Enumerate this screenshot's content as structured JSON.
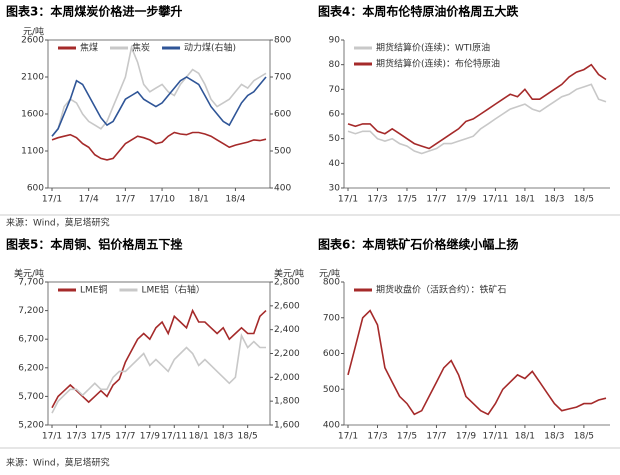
{
  "chart_data": [
    {
      "type": "line",
      "title": "图表3：本周煤炭价格进一步攀升",
      "ylabel": "元/吨",
      "frame": true,
      "categories": [
        "17/1",
        null,
        null,
        null,
        null,
        null,
        "17/4",
        null,
        null,
        null,
        null,
        null,
        "17/7",
        null,
        null,
        null,
        null,
        null,
        "17/10",
        null,
        null,
        null,
        null,
        null,
        "18/1",
        null,
        null,
        null,
        null,
        null,
        "18/4",
        null,
        null,
        null,
        null,
        null
      ],
      "ylim": [
        600,
        2600
      ],
      "yticks": [
        600,
        1100,
        1600,
        2100,
        2600
      ],
      "y2lim": [
        400,
        800
      ],
      "y2ticks": [
        400,
        500,
        600,
        700,
        800
      ],
      "series": [
        {
          "name": "焦煤",
          "color": "#a52a2a",
          "values": [
            1250,
            1280,
            1300,
            1320,
            1280,
            1200,
            1150,
            1050,
            1000,
            980,
            1000,
            1100,
            1200,
            1250,
            1300,
            1280,
            1250,
            1200,
            1220,
            1300,
            1350,
            1330,
            1320,
            1350,
            1350,
            1330,
            1300,
            1250,
            1200,
            1150,
            1180,
            1200,
            1220,
            1250,
            1240,
            1260
          ]
        },
        {
          "name": "焦炭",
          "color": "#c8c8c8",
          "values": [
            1300,
            1400,
            1700,
            1800,
            1750,
            1600,
            1500,
            1450,
            1400,
            1500,
            1700,
            1900,
            2100,
            2500,
            2300,
            2000,
            1900,
            1950,
            2000,
            1900,
            1850,
            2000,
            2100,
            2200,
            2150,
            2000,
            1800,
            1700,
            1750,
            1800,
            1900,
            2000,
            1950,
            2050,
            2100,
            2150
          ]
        },
        {
          "name": "动力煤(右轴)",
          "color": "#2f5597",
          "axis": "y2",
          "values": [
            540,
            560,
            600,
            640,
            690,
            680,
            650,
            620,
            590,
            570,
            580,
            610,
            640,
            650,
            660,
            640,
            630,
            620,
            630,
            650,
            670,
            690,
            700,
            690,
            680,
            650,
            620,
            600,
            580,
            570,
            600,
            630,
            650,
            660,
            680,
            700
          ]
        }
      ]
    },
    {
      "type": "line",
      "title": "图表4：本周布伦特原油价格周五大跌",
      "frame": false,
      "categories": [
        "17/1",
        null,
        null,
        null,
        "17/3",
        null,
        null,
        null,
        "17/5",
        null,
        null,
        null,
        "17/7",
        null,
        null,
        null,
        "17/9",
        null,
        null,
        null,
        "17/11",
        null,
        null,
        null,
        "18/1",
        null,
        null,
        null,
        "18/3",
        null,
        null,
        null,
        "18/5",
        null,
        null,
        null
      ],
      "ylim": [
        30,
        90
      ],
      "yticks": [
        30,
        40,
        50,
        60,
        70,
        80,
        90
      ],
      "series": [
        {
          "name": "期货结算价(连续)：WTI原油",
          "color": "#c8c8c8",
          "values": [
            53,
            52,
            53,
            53,
            50,
            49,
            50,
            48,
            47,
            45,
            44,
            45,
            46,
            48,
            48,
            49,
            50,
            51,
            54,
            56,
            58,
            60,
            62,
            63,
            64,
            62,
            61,
            63,
            65,
            67,
            68,
            70,
            71,
            72,
            66,
            65
          ]
        },
        {
          "name": "期货结算价(连续)：布伦特原油",
          "color": "#a52a2a",
          "values": [
            56,
            55,
            56,
            56,
            53,
            52,
            54,
            52,
            50,
            48,
            47,
            46,
            48,
            50,
            52,
            54,
            57,
            58,
            60,
            62,
            64,
            66,
            68,
            67,
            70,
            66,
            66,
            68,
            70,
            72,
            75,
            77,
            78,
            80,
            76,
            74
          ]
        }
      ]
    },
    {
      "type": "line",
      "title": "图表5：本周铜、铝价格周五下挫",
      "ylabel": "美元/吨",
      "y2label": "美元/吨",
      "frame": true,
      "categories": [
        "17/1",
        null,
        null,
        null,
        "17/3",
        null,
        null,
        null,
        "17/5",
        null,
        null,
        null,
        "17/7",
        null,
        null,
        null,
        "17/9",
        null,
        null,
        null,
        "17/11",
        null,
        null,
        null,
        "18/1",
        null,
        null,
        null,
        "18/3",
        null,
        null,
        null,
        "18/5",
        null,
        null,
        null
      ],
      "ylim": [
        5200,
        7700
      ],
      "yticks": [
        {
          "value": 5200,
          "label": "5,200"
        },
        {
          "value": 5700,
          "label": "5,700"
        },
        {
          "value": 6200,
          "label": "6,200"
        },
        {
          "value": 6700,
          "label": "6,700"
        },
        {
          "value": 7200,
          "label": "7,200"
        },
        {
          "value": 7700,
          "label": "7,700"
        }
      ],
      "y2lim": [
        1600,
        2800
      ],
      "y2ticks": [
        {
          "value": 1600,
          "label": "1,600"
        },
        {
          "value": 1800,
          "label": "1,800"
        },
        {
          "value": 2000,
          "label": "2,000"
        },
        {
          "value": 2200,
          "label": "2,200"
        },
        {
          "value": 2400,
          "label": "2,400"
        },
        {
          "value": 2600,
          "label": "2,600"
        },
        {
          "value": 2800,
          "label": "2,800"
        }
      ],
      "series": [
        {
          "name": "LME铜",
          "color": "#a52a2a",
          "values": [
            5500,
            5700,
            5800,
            5900,
            5800,
            5700,
            5600,
            5700,
            5800,
            5700,
            5900,
            6000,
            6300,
            6500,
            6700,
            6800,
            6700,
            6900,
            7000,
            6800,
            7100,
            7000,
            6900,
            7200,
            7000,
            7000,
            6900,
            6800,
            6900,
            6700,
            6800,
            6900,
            6800,
            6800,
            7100,
            7200
          ]
        },
        {
          "name": "LME铝（右轴）",
          "color": "#c8c8c8",
          "axis": "y2",
          "values": [
            1700,
            1800,
            1850,
            1900,
            1900,
            1850,
            1900,
            1950,
            1900,
            1900,
            2000,
            2050,
            2050,
            2100,
            2150,
            2200,
            2100,
            2150,
            2100,
            2050,
            2150,
            2200,
            2250,
            2200,
            2100,
            2150,
            2100,
            2050,
            2000,
            1950,
            2000,
            2350,
            2250,
            2300,
            2250,
            2250
          ]
        }
      ]
    },
    {
      "type": "line",
      "title": "图表6：本周铁矿石价格继续小幅上扬",
      "ylabel": "元/吨",
      "frame": false,
      "categories": [
        "17/1",
        null,
        null,
        null,
        "17/3",
        null,
        null,
        null,
        "17/5",
        null,
        null,
        null,
        "17/7",
        null,
        null,
        null,
        "17/9",
        null,
        null,
        null,
        "17/11",
        null,
        null,
        null,
        "18/1",
        null,
        null,
        null,
        "18/3",
        null,
        null,
        null,
        "18/5",
        null,
        null,
        null
      ],
      "ylim": [
        400,
        800
      ],
      "yticks": [
        400,
        500,
        600,
        700,
        800
      ],
      "series": [
        {
          "name": "期货收盘价（活跃合约）：铁矿石",
          "color": "#a52a2a",
          "values": [
            540,
            620,
            700,
            720,
            680,
            560,
            520,
            480,
            460,
            430,
            440,
            480,
            520,
            560,
            580,
            540,
            480,
            460,
            440,
            430,
            460,
            500,
            520,
            540,
            530,
            550,
            520,
            490,
            460,
            440,
            445,
            450,
            460,
            460,
            470,
            475
          ]
        }
      ]
    }
  ],
  "sources": [
    "来源：Wind，莫尼塔研究",
    "来源：Wind，莫尼塔研究"
  ]
}
